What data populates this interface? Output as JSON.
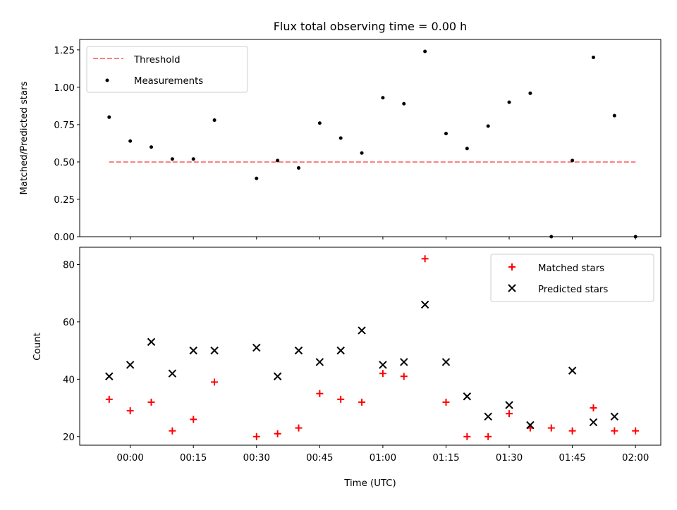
{
  "title": "Flux total observing time = 0.00 h",
  "colors": {
    "threshold": "#ff8080",
    "measurements": "#000000",
    "matched": "#ff0000",
    "predicted": "#000000"
  },
  "chart_data": [
    {
      "type": "scatter",
      "title": "Flux total observing time = 0.00 h",
      "xlabel": "",
      "ylabel": "Matched/Predicted stars",
      "ylim": [
        0.0,
        1.32
      ],
      "yticks": [
        "0.00",
        "0.25",
        "0.50",
        "0.75",
        "1.00",
        "1.25"
      ],
      "ytick_values": [
        0.0,
        0.25,
        0.5,
        0.75,
        1.0,
        1.25
      ],
      "legend": {
        "placement": "top-left",
        "entries": [
          "Threshold",
          "Measurements"
        ]
      },
      "series": [
        {
          "name": "Threshold",
          "style": "dashed-line",
          "x": [
            "23:55",
            "02:00"
          ],
          "y": [
            0.5,
            0.5
          ]
        },
        {
          "name": "Measurements",
          "style": "dot",
          "x": [
            "23:55",
            "00:00",
            "00:05",
            "00:10",
            "00:15",
            "00:20",
            "00:30",
            "00:35",
            "00:40",
            "00:45",
            "00:50",
            "00:55",
            "01:00",
            "01:05",
            "01:10",
            "01:15",
            "01:20",
            "01:25",
            "01:30",
            "01:35",
            "01:40",
            "01:45",
            "01:50",
            "01:55",
            "02:00"
          ],
          "y": [
            0.8,
            0.64,
            0.6,
            0.52,
            0.52,
            0.78,
            0.39,
            0.51,
            0.46,
            0.76,
            0.66,
            0.56,
            0.93,
            0.89,
            1.24,
            0.69,
            0.59,
            0.74,
            0.9,
            0.96,
            0.0,
            0.51,
            1.2,
            0.81,
            0.0
          ]
        }
      ]
    },
    {
      "type": "scatter",
      "xlabel": "Time (UTC)",
      "ylabel": "Count",
      "ylim": [
        17,
        86
      ],
      "yticks": [
        "20",
        "40",
        "60",
        "80"
      ],
      "ytick_values": [
        20,
        40,
        60,
        80
      ],
      "xticks": [
        "00:00",
        "00:15",
        "00:30",
        "00:45",
        "01:00",
        "01:15",
        "01:30",
        "01:45",
        "02:00"
      ],
      "xlim": [
        "23:48",
        "02:06"
      ],
      "legend": {
        "placement": "top-right",
        "entries": [
          "Matched stars",
          "Predicted stars"
        ]
      },
      "series": [
        {
          "name": "Matched stars",
          "marker": "+",
          "x": [
            "23:55",
            "00:00",
            "00:05",
            "00:10",
            "00:15",
            "00:20",
            "00:30",
            "00:35",
            "00:40",
            "00:45",
            "00:50",
            "00:55",
            "01:00",
            "01:05",
            "01:10",
            "01:15",
            "01:20",
            "01:25",
            "01:30",
            "01:35",
            "01:40",
            "01:45",
            "01:50",
            "01:55",
            "02:00"
          ],
          "y": [
            33,
            29,
            32,
            22,
            26,
            39,
            20,
            21,
            23,
            35,
            33,
            32,
            42,
            41,
            82,
            32,
            20,
            20,
            28,
            23,
            23,
            22,
            30,
            22,
            22
          ]
        },
        {
          "name": "Predicted stars",
          "marker": "x",
          "x": [
            "23:55",
            "00:00",
            "00:05",
            "00:10",
            "00:15",
            "00:20",
            "00:30",
            "00:35",
            "00:40",
            "00:45",
            "00:50",
            "00:55",
            "01:00",
            "01:05",
            "01:10",
            "01:15",
            "01:20",
            "01:25",
            "01:30",
            "01:35",
            "01:50",
            "01:55",
            "01:45"
          ],
          "y": [
            41,
            45,
            53,
            42,
            50,
            50,
            51,
            41,
            50,
            46,
            50,
            57,
            45,
            46,
            66,
            46,
            34,
            27,
            31,
            24,
            25,
            27,
            43
          ]
        }
      ]
    }
  ]
}
